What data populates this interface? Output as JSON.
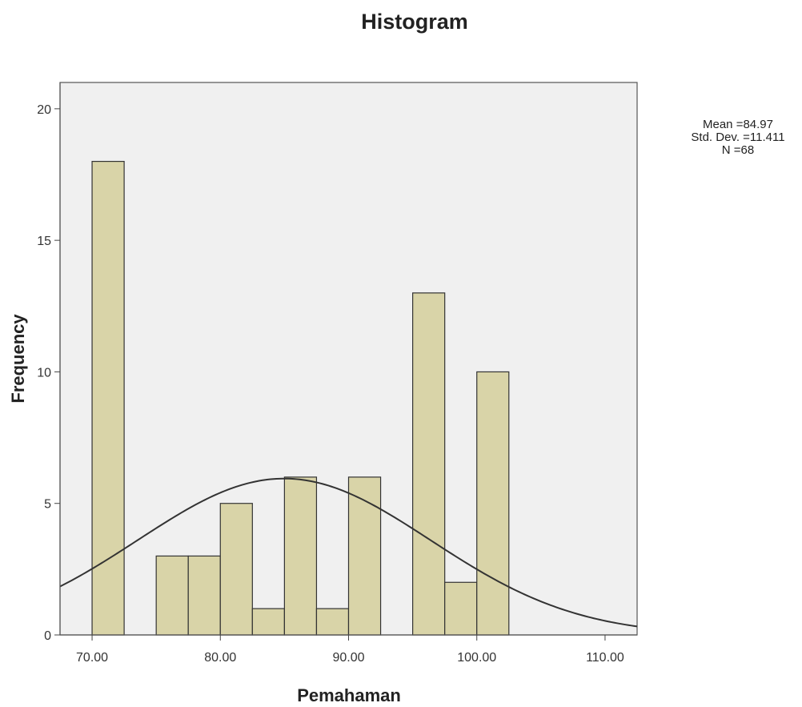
{
  "chart_data": {
    "type": "bar",
    "title": "Histogram",
    "xlabel": "Pemahaman",
    "ylabel": "Frequency",
    "xlim": [
      67.5,
      112.5
    ],
    "ylim": [
      0,
      21
    ],
    "x_ticks": [
      "70.00",
      "80.00",
      "90.00",
      "100.00",
      "110.00"
    ],
    "x_tick_values": [
      70,
      80,
      90,
      100,
      110
    ],
    "y_ticks": [
      0,
      5,
      10,
      15,
      20
    ],
    "bin_width": 2.5,
    "bins": [
      {
        "start": 70.0,
        "end": 72.5,
        "count": 18
      },
      {
        "start": 75.0,
        "end": 77.5,
        "count": 3
      },
      {
        "start": 77.5,
        "end": 80.0,
        "count": 3
      },
      {
        "start": 80.0,
        "end": 82.5,
        "count": 5
      },
      {
        "start": 82.5,
        "end": 85.0,
        "count": 1
      },
      {
        "start": 85.0,
        "end": 87.5,
        "count": 6
      },
      {
        "start": 87.5,
        "end": 90.0,
        "count": 1
      },
      {
        "start": 90.0,
        "end": 92.5,
        "count": 6
      },
      {
        "start": 95.0,
        "end": 97.5,
        "count": 13
      },
      {
        "start": 97.5,
        "end": 100.0,
        "count": 2
      },
      {
        "start": 100.0,
        "end": 102.5,
        "count": 10
      }
    ],
    "normal_curve": {
      "mean": 84.97,
      "sd": 11.411,
      "n": 68
    },
    "stats_lines": [
      "Mean =84.97",
      "Std. Dev. =11.411",
      "N =68"
    ],
    "bar_color": "#d9d4a8",
    "bar_stroke": "#333333",
    "plot_background": "#f0f0f0",
    "curve_color": "#333333"
  }
}
